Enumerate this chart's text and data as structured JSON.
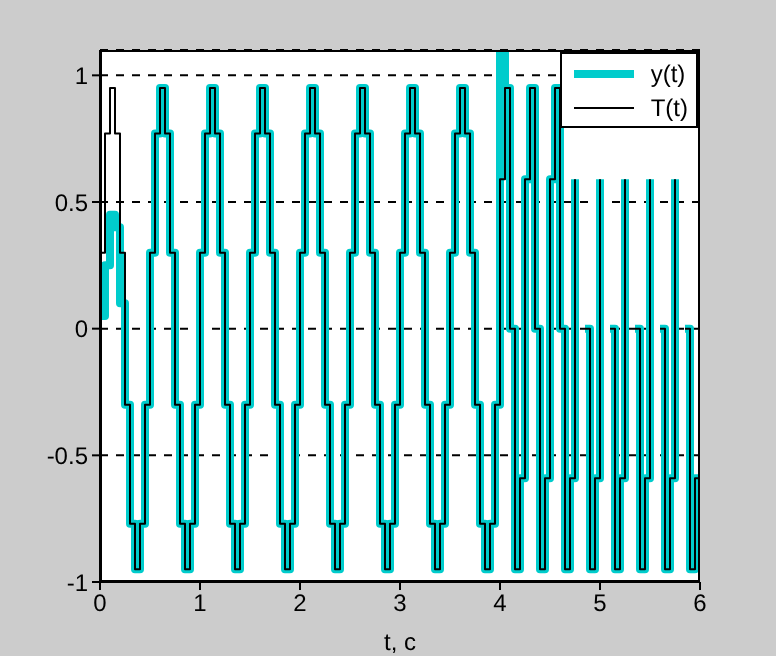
{
  "chart_data": {
    "type": "step",
    "xlabel": "t, c",
    "x": [
      0,
      0.05,
      0.1,
      0.15,
      0.2,
      0.25,
      0.3,
      0.35,
      0.4,
      0.45,
      0.5,
      0.55,
      0.6,
      0.65,
      0.7,
      0.75,
      0.8,
      0.85,
      0.9,
      0.95,
      1,
      1.05,
      1.1,
      1.15,
      1.2,
      1.25,
      1.3,
      1.35,
      1.4,
      1.45,
      1.5,
      1.55,
      1.6,
      1.65,
      1.7,
      1.75,
      1.8,
      1.85,
      1.9,
      1.95,
      2,
      2.05,
      2.1,
      2.15,
      2.2,
      2.25,
      2.3,
      2.35,
      2.4,
      2.45,
      2.5,
      2.55,
      2.6,
      2.65,
      2.7,
      2.75,
      2.8,
      2.85,
      2.9,
      2.95,
      3,
      3.05,
      3.1,
      3.15,
      3.2,
      3.25,
      3.3,
      3.35,
      3.4,
      3.45,
      3.5,
      3.55,
      3.6,
      3.65,
      3.7,
      3.75,
      3.8,
      3.85,
      3.9,
      3.95,
      4,
      4.05,
      4.1,
      4.15,
      4.2,
      4.25,
      4.3,
      4.35,
      4.4,
      4.45,
      4.5,
      4.55,
      4.6,
      4.65,
      4.7,
      4.75,
      4.8,
      4.85,
      4.9,
      4.95,
      5,
      5.05,
      5.1,
      5.15,
      5.2,
      5.25,
      5.3,
      5.35,
      5.4,
      5.45,
      5.5,
      5.55,
      5.6,
      5.65,
      5.7,
      5.75,
      5.8,
      5.85,
      5.9,
      5.95,
      6
    ],
    "series": [
      {
        "name": "y(t)",
        "color": "#00cccc",
        "values": [
          0.05,
          0.25,
          0.45,
          0.4,
          0.1,
          -0.3,
          -0.77,
          -0.95,
          -0.77,
          -0.3,
          0.3,
          0.77,
          0.95,
          0.77,
          0.3,
          -0.3,
          -0.77,
          -0.95,
          -0.77,
          -0.3,
          0.3,
          0.77,
          0.95,
          0.77,
          0.3,
          -0.3,
          -0.77,
          -0.95,
          -0.77,
          -0.3,
          0.3,
          0.77,
          0.95,
          0.77,
          0.3,
          -0.3,
          -0.77,
          -0.95,
          -0.77,
          -0.3,
          0.3,
          0.77,
          0.95,
          0.77,
          0.3,
          -0.3,
          -0.77,
          -0.95,
          -0.77,
          -0.3,
          0.3,
          0.77,
          0.95,
          0.77,
          0.3,
          -0.3,
          -0.77,
          -0.95,
          -0.77,
          -0.3,
          0.3,
          0.77,
          0.95,
          0.77,
          0.3,
          -0.3,
          -0.77,
          -0.95,
          -0.77,
          -0.3,
          0.3,
          0.77,
          0.95,
          0.77,
          0.3,
          -0.3,
          -0.77,
          -0.95,
          -0.77,
          -0.3,
          1.1,
          0.95,
          0,
          -0.95,
          -0.59,
          0.59,
          0.95,
          0,
          -0.95,
          -0.59,
          0.59,
          0.95,
          0,
          -0.95,
          -0.59,
          0.59,
          null,
          0,
          -0.95,
          -0.59,
          0.59,
          null,
          0,
          -0.95,
          -0.59,
          0.59,
          null,
          0,
          -0.95,
          -0.59,
          0.59,
          null,
          0,
          -0.95,
          -0.59,
          0.59,
          null,
          0,
          -0.95,
          -0.59,
          -0.59
        ]
      },
      {
        "name": "T(t)",
        "color": "#000000",
        "values": [
          0.3,
          0.77,
          0.95,
          0.77,
          0.3,
          -0.3,
          -0.77,
          -0.95,
          -0.77,
          -0.3,
          0.3,
          0.77,
          0.95,
          0.77,
          0.3,
          -0.3,
          -0.77,
          -0.95,
          -0.77,
          -0.3,
          0.3,
          0.77,
          0.95,
          0.77,
          0.3,
          -0.3,
          -0.77,
          -0.95,
          -0.77,
          -0.3,
          0.3,
          0.77,
          0.95,
          0.77,
          0.3,
          -0.3,
          -0.77,
          -0.95,
          -0.77,
          -0.3,
          0.3,
          0.77,
          0.95,
          0.77,
          0.3,
          -0.3,
          -0.77,
          -0.95,
          -0.77,
          -0.3,
          0.3,
          0.77,
          0.95,
          0.77,
          0.3,
          -0.3,
          -0.77,
          -0.95,
          -0.77,
          -0.3,
          0.3,
          0.77,
          0.95,
          0.77,
          0.3,
          -0.3,
          -0.77,
          -0.95,
          -0.77,
          -0.3,
          0.3,
          0.77,
          0.95,
          0.77,
          0.3,
          -0.3,
          -0.77,
          -0.95,
          -0.77,
          -0.3,
          0.59,
          0.95,
          0,
          -0.95,
          -0.59,
          0.59,
          0.95,
          0,
          -0.95,
          -0.59,
          0.59,
          0.95,
          0,
          -0.95,
          -0.59,
          0.59,
          null,
          0,
          -0.95,
          -0.59,
          0.59,
          null,
          0,
          -0.95,
          -0.59,
          0.59,
          null,
          0,
          -0.95,
          -0.59,
          0.59,
          null,
          0,
          -0.95,
          -0.59,
          0.59,
          null,
          0,
          -0.95,
          -0.59,
          -0.59
        ]
      }
    ],
    "xlim": [
      0,
      6
    ],
    "xticks": [
      0,
      1,
      2,
      3,
      4,
      5,
      6
    ],
    "ylim": [
      -1,
      1.1
    ],
    "yticks": [
      -1,
      -0.5,
      0,
      0.5,
      1
    ],
    "grid": "y",
    "legend": "top right"
  }
}
